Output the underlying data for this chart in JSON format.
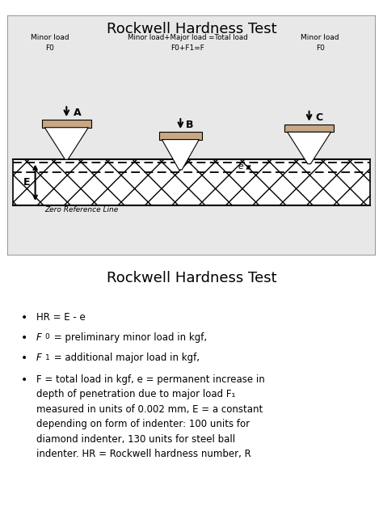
{
  "title": "Rockwell Hardness Test",
  "title2": "Rockwell Hardness Test",
  "bg_color": "#f2f2f2",
  "diagram_bg": "#e8e8e8",
  "material_color": "#c8a882",
  "label_A_line1": "Minor load",
  "label_A_line2": "F0",
  "label_B_line1": "Minor load+Major load =Total load",
  "label_B_line2": "F0+F1=F",
  "label_C_line1": "Minor load",
  "label_C_line2": "F0",
  "letter_A": "A",
  "letter_B": "B",
  "letter_C": "C",
  "letter_E": "E",
  "letter_e": "e",
  "zero_ref_label": "Zero Reference Line",
  "bullet1": "HR = E - e",
  "bullet2_pre": "F",
  "bullet2_sub": "0",
  "bullet2_post": " = preliminary minor load in kgf,",
  "bullet3_pre": "F",
  "bullet3_sub": "1",
  "bullet3_post": " = additional major load in kgf,",
  "bullet4": "F = total load in kgf, e = permanent increase in\ndepth of penetration due to major load F",
  "bullet4_sub": "1",
  "bullet4_cont": "\nmeasured in units of 0.002 mm, E = a constant\ndepending on form of indenter: 100 units for\ndiamond indenter, 130 units for steel ball\nindenter. HR = Rockwell hardness number, R"
}
